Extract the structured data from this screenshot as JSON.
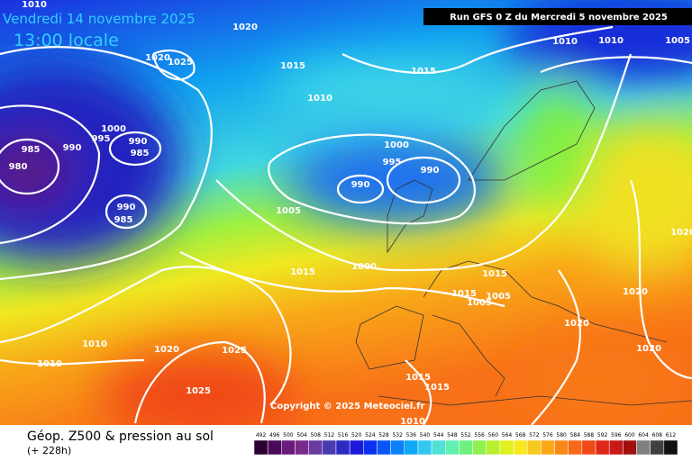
{
  "header": {
    "valid_date": "Vendredi 14 novembre 2025",
    "local_time": "13:00 locale",
    "run": "Run GFS 0 Z du Mercredi 5 novembre 2025"
  },
  "isobar_labels": [
    1010,
    1020,
    1020,
    1025,
    1015,
    1010,
    1010,
    1010,
    1005,
    1015,
    1000,
    995,
    990,
    990,
    985,
    985,
    980,
    1000,
    995,
    990,
    990,
    1005,
    990,
    985,
    1015,
    1000,
    1015,
    1015,
    1005,
    1005,
    1020,
    1020,
    1020,
    1010,
    1020,
    1025,
    1010,
    1020,
    1025,
    1015,
    1015,
    1010
  ],
  "copyright": "Copyright © 2025 Meteociel.fr",
  "footer": {
    "title": "Géop. Z500 & pression au sol",
    "lead": "(+ 228h)"
  },
  "legend": {
    "values": [
      492,
      496,
      500,
      504,
      508,
      512,
      516,
      520,
      524,
      528,
      532,
      536,
      540,
      544,
      548,
      552,
      556,
      560,
      564,
      568,
      572,
      576,
      580,
      584,
      588,
      592,
      596,
      600,
      604,
      608,
      612
    ],
    "colors": [
      "#2b0033",
      "#4a0a5a",
      "#6a1a7a",
      "#7a2a8a",
      "#6a3aa0",
      "#4a3ab0",
      "#2a2ac0",
      "#1a1ad8",
      "#0a30f0",
      "#0a55f5",
      "#0a80f8",
      "#10a8f5",
      "#30c8f0",
      "#50e0d8",
      "#60f0b0",
      "#70f080",
      "#90f050",
      "#b8f030",
      "#e0f020",
      "#f8e820",
      "#f8c820",
      "#f8a818",
      "#f88818",
      "#f86818",
      "#f04818",
      "#e02818",
      "#c81818",
      "#a01010",
      "#808080",
      "#404040",
      "#101010"
    ]
  }
}
